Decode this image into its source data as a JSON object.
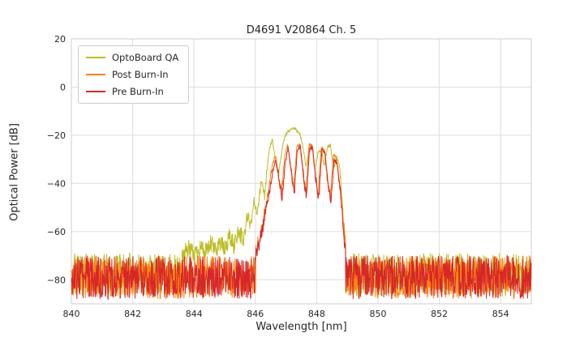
{
  "chart_data": {
    "type": "line",
    "title": "D4691 V20864 Ch. 5",
    "xlabel": "Wavelength [nm]",
    "ylabel": "Optical Power [dB]",
    "xlim": [
      840,
      855
    ],
    "ylim": [
      -90,
      20
    ],
    "xticks": {
      "values": [
        840,
        842,
        844,
        846,
        848,
        850,
        852,
        854
      ],
      "labels": [
        "840",
        "842",
        "844",
        "846",
        "848",
        "850",
        "852",
        "854"
      ]
    },
    "yticks": {
      "values": [
        20,
        0,
        -20,
        -40,
        -60,
        -80
      ],
      "labels": [
        "20",
        "0",
        "−20",
        "−40",
        "−60",
        "−80"
      ]
    },
    "grid": true,
    "grid_color": "#dddddd",
    "spine_color": "#cccccc",
    "legend_position": "upper left",
    "series": [
      {
        "name": "OptoBoard QA",
        "color": "#bcbd22",
        "noise_floor": -87,
        "noise_ceil": -69,
        "peak_points": [
          [
            843.6,
            -71
          ],
          [
            843.8,
            -67
          ],
          [
            844.0,
            -70
          ],
          [
            844.2,
            -66
          ],
          [
            844.4,
            -69
          ],
          [
            844.55,
            -65
          ],
          [
            844.7,
            -68
          ],
          [
            844.85,
            -64
          ],
          [
            845.0,
            -68
          ],
          [
            845.15,
            -62
          ],
          [
            845.3,
            -66
          ],
          [
            845.45,
            -59
          ],
          [
            845.6,
            -64
          ],
          [
            845.75,
            -54
          ],
          [
            845.85,
            -59
          ],
          [
            845.95,
            -47
          ],
          [
            846.05,
            -53
          ],
          [
            846.2,
            -39
          ],
          [
            846.3,
            -45
          ],
          [
            846.45,
            -26
          ],
          [
            846.55,
            -22
          ],
          [
            846.65,
            -30
          ],
          [
            846.75,
            -37
          ],
          [
            846.85,
            -28
          ],
          [
            846.95,
            -21
          ],
          [
            847.05,
            -18.5
          ],
          [
            847.25,
            -17
          ],
          [
            847.45,
            -19
          ],
          [
            847.55,
            -25
          ],
          [
            847.65,
            -33
          ],
          [
            847.75,
            -27
          ],
          [
            847.85,
            -25
          ],
          [
            847.95,
            -34
          ],
          [
            848.05,
            -27
          ],
          [
            848.15,
            -26
          ],
          [
            848.25,
            -33
          ],
          [
            848.35,
            -25
          ],
          [
            848.45,
            -24
          ],
          [
            848.55,
            -34
          ],
          [
            848.65,
            -29
          ],
          [
            848.75,
            -33
          ],
          [
            848.82,
            -45
          ],
          [
            848.9,
            -62
          ],
          [
            848.98,
            -74
          ]
        ]
      },
      {
        "name": "Post Burn-In",
        "color": "#ff7f0e",
        "noise_floor": -88,
        "noise_ceil": -70,
        "peak_points": [
          [
            846.0,
            -70
          ],
          [
            846.15,
            -60
          ],
          [
            846.3,
            -52
          ],
          [
            846.45,
            -42
          ],
          [
            846.55,
            -33
          ],
          [
            846.65,
            -28
          ],
          [
            846.75,
            -36
          ],
          [
            846.85,
            -44
          ],
          [
            846.95,
            -30
          ],
          [
            847.05,
            -24
          ],
          [
            847.15,
            -33
          ],
          [
            847.25,
            -43
          ],
          [
            847.35,
            -25
          ],
          [
            847.45,
            -23.5
          ],
          [
            847.55,
            -35
          ],
          [
            847.65,
            -44
          ],
          [
            847.75,
            -24
          ],
          [
            847.85,
            -24.5
          ],
          [
            847.95,
            -36
          ],
          [
            848.05,
            -45
          ],
          [
            848.15,
            -25
          ],
          [
            848.25,
            -26
          ],
          [
            848.35,
            -38
          ],
          [
            848.45,
            -46
          ],
          [
            848.55,
            -28
          ],
          [
            848.65,
            -30
          ],
          [
            848.75,
            -40
          ],
          [
            848.85,
            -55
          ],
          [
            848.95,
            -68
          ]
        ]
      },
      {
        "name": "Pre Burn-In",
        "color": "#d62728",
        "noise_floor": -88,
        "noise_ceil": -70,
        "peak_points": [
          [
            846.0,
            -72
          ],
          [
            846.15,
            -62
          ],
          [
            846.3,
            -54
          ],
          [
            846.45,
            -44
          ],
          [
            846.57,
            -35
          ],
          [
            846.67,
            -30
          ],
          [
            846.77,
            -38
          ],
          [
            846.87,
            -46
          ],
          [
            846.97,
            -32
          ],
          [
            847.07,
            -25
          ],
          [
            847.17,
            -35
          ],
          [
            847.27,
            -45
          ],
          [
            847.37,
            -26
          ],
          [
            847.47,
            -24.5
          ],
          [
            847.57,
            -37
          ],
          [
            847.67,
            -46
          ],
          [
            847.77,
            -25
          ],
          [
            847.87,
            -25.5
          ],
          [
            847.97,
            -38
          ],
          [
            848.07,
            -47
          ],
          [
            848.17,
            -26
          ],
          [
            848.27,
            -27
          ],
          [
            848.37,
            -40
          ],
          [
            848.47,
            -48
          ],
          [
            848.57,
            -30
          ],
          [
            848.67,
            -32
          ],
          [
            848.77,
            -42
          ],
          [
            848.87,
            -58
          ],
          [
            848.95,
            -70
          ]
        ]
      }
    ]
  }
}
